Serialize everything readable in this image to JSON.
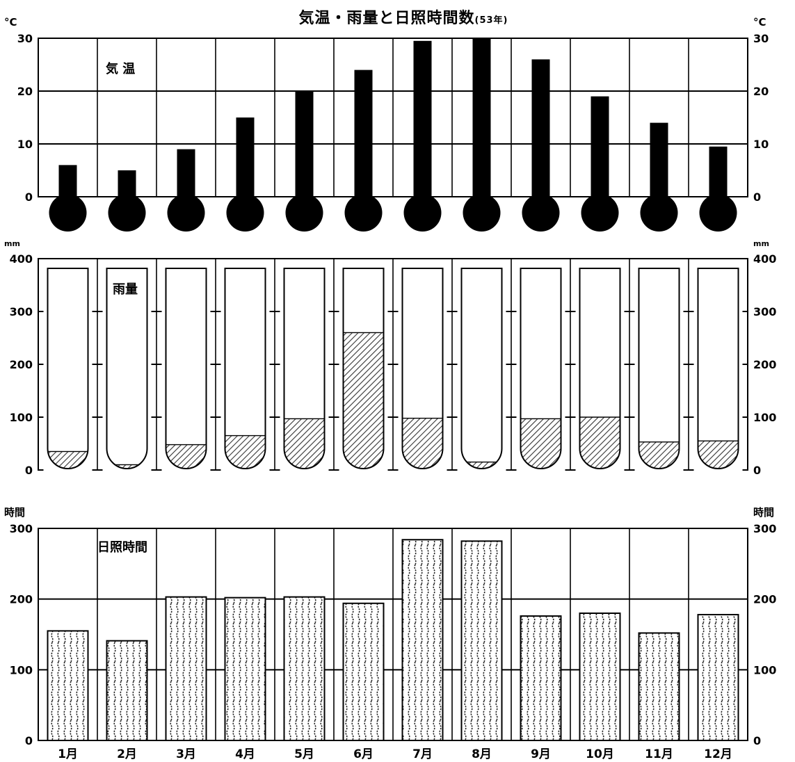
{
  "title": "気温・雨量と日照時間数",
  "title_suffix": "(53年)",
  "colors": {
    "ink": "#000000",
    "paper": "#ffffff",
    "hatch": "#555555"
  },
  "chart_data": [
    {
      "type": "bar",
      "panel": "temperature",
      "label": "気 温",
      "unit": "°C",
      "ylim": [
        0,
        30
      ],
      "ticks": [
        0,
        10,
        20,
        30
      ],
      "categories": [
        "1月",
        "2月",
        "3月",
        "4月",
        "5月",
        "6月",
        "7月",
        "8月",
        "9月",
        "10月",
        "11月",
        "12月"
      ],
      "values": [
        6.0,
        5.0,
        9.0,
        15.0,
        20.0,
        24.0,
        29.5,
        30.0,
        26.0,
        19.0,
        14.0,
        9.5
      ],
      "grid": true,
      "marker": "thermometer"
    },
    {
      "type": "bar",
      "panel": "rainfall",
      "label": "雨量",
      "unit": "mm",
      "ylim": [
        0,
        400
      ],
      "ticks": [
        0,
        100,
        200,
        300,
        400
      ],
      "categories": [
        "1月",
        "2月",
        "3月",
        "4月",
        "5月",
        "6月",
        "7月",
        "8月",
        "9月",
        "10月",
        "11月",
        "12月"
      ],
      "values": [
        35,
        10,
        48,
        65,
        97,
        260,
        98,
        15,
        97,
        100,
        53,
        55
      ],
      "grid": true,
      "marker": "test-tube"
    },
    {
      "type": "bar",
      "panel": "sunshine",
      "label": "日照時間",
      "unit": "時間",
      "ylim": [
        0,
        300
      ],
      "ticks": [
        0,
        100,
        200,
        300
      ],
      "categories": [
        "1月",
        "2月",
        "3月",
        "4月",
        "5月",
        "6月",
        "7月",
        "8月",
        "9月",
        "10月",
        "11月",
        "12月"
      ],
      "values": [
        155,
        141,
        203,
        202,
        203,
        194,
        284,
        282,
        176,
        180,
        152,
        178
      ],
      "grid": true,
      "marker": "wavy-pattern"
    }
  ]
}
